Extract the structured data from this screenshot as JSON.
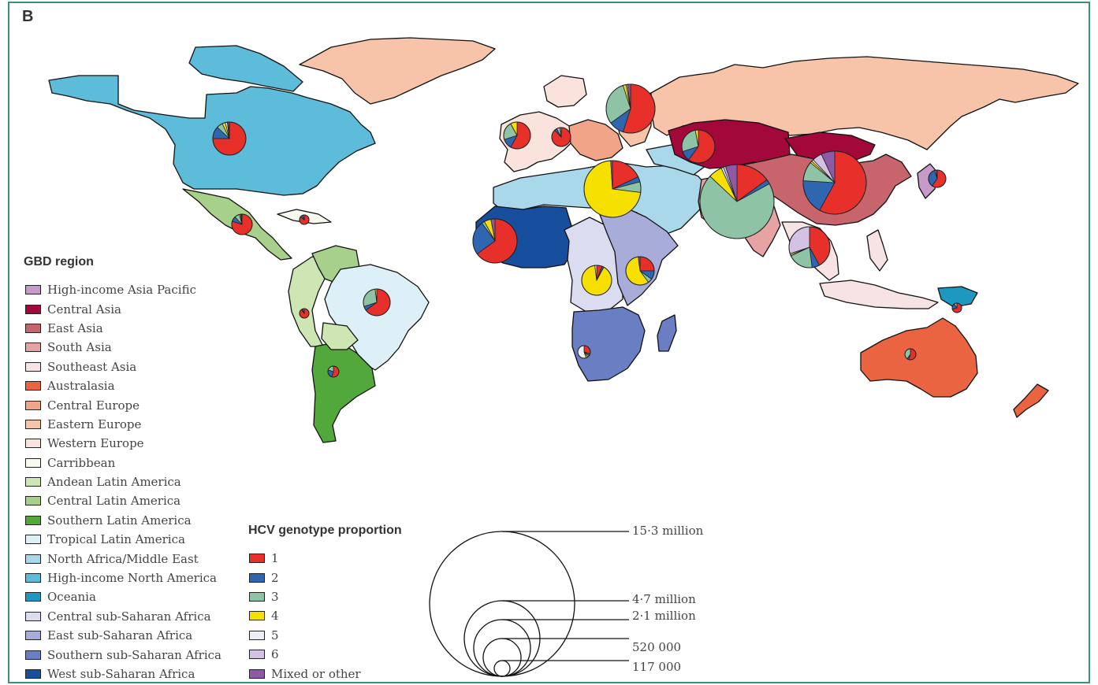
{
  "panel_label": "B",
  "gbd_legend": {
    "title": "GBD region",
    "items": [
      {
        "label": "High-income Asia Pacific",
        "color": "#c79ac9"
      },
      {
        "label": "Central Asia",
        "color": "#a3083b"
      },
      {
        "label": "East Asia",
        "color": "#c8646c"
      },
      {
        "label": "South Asia",
        "color": "#e5a3a3"
      },
      {
        "label": "Southeast Asia",
        "color": "#f7e3e3"
      },
      {
        "label": "Australasia",
        "color": "#ea6441"
      },
      {
        "label": "Central Europe",
        "color": "#f2a488"
      },
      {
        "label": "Eastern Europe",
        "color": "#f7c4aa"
      },
      {
        "label": "Western Europe",
        "color": "#fae3dc"
      },
      {
        "label": "Carribbean",
        "color": "#f7faee"
      },
      {
        "label": "Andean Latin America",
        "color": "#cde6b4"
      },
      {
        "label": "Central Latin America",
        "color": "#a7d08a"
      },
      {
        "label": "Southern Latin America",
        "color": "#52a83a"
      },
      {
        "label": "Tropical Latin America",
        "color": "#ddf0f7"
      },
      {
        "label": "North Africa/Middle East",
        "color": "#a9d8ea"
      },
      {
        "label": "High-income North America",
        "color": "#5cbcd9"
      },
      {
        "label": "Oceania",
        "color": "#1c98c1"
      },
      {
        "label": "Central sub-Saharan Africa",
        "color": "#dcdcf0"
      },
      {
        "label": "East sub-Saharan Africa",
        "color": "#a8acd8"
      },
      {
        "label": "Southern sub-Saharan Africa",
        "color": "#6a7ec4"
      },
      {
        "label": "West sub-Saharan Africa",
        "color": "#184e9e"
      }
    ]
  },
  "genotype_legend": {
    "title": "HCV genotype proportion",
    "items": [
      {
        "label": "1",
        "color": "#e8302a"
      },
      {
        "label": "2",
        "color": "#2f66b0"
      },
      {
        "label": "3",
        "color": "#8fc3a6"
      },
      {
        "label": "4",
        "color": "#f5e000"
      },
      {
        "label": "5",
        "color": "#eeeef5"
      },
      {
        "label": "6",
        "color": "#d3c2e3"
      },
      {
        "label": "Mixed or other",
        "color": "#8e5aa6"
      }
    ]
  },
  "size_scale": {
    "labels": [
      "15·3 million",
      "4·7 million",
      "2·1 million",
      "520 000",
      "117 000"
    ]
  },
  "pie_charts": [
    {
      "region": "High-income North America",
      "shares": [
        0.75,
        0.12,
        0.06,
        0.03,
        0.02,
        0.01,
        0.01
      ]
    },
    {
      "region": "Central Latin America",
      "shares": [
        0.8,
        0.08,
        0.08,
        0.02,
        0.01,
        0.005,
        0.005
      ]
    },
    {
      "region": "Carribbean",
      "shares": [
        0.85,
        0.1,
        0.05,
        0,
        0,
        0,
        0
      ]
    },
    {
      "region": "Andean Latin America",
      "shares": [
        0.9,
        0.05,
        0.05,
        0,
        0,
        0,
        0
      ]
    },
    {
      "region": "Tropical Latin America",
      "shares": [
        0.65,
        0.05,
        0.28,
        0.02,
        0,
        0,
        0
      ]
    },
    {
      "region": "Southern Latin America",
      "shares": [
        0.55,
        0.25,
        0.2,
        0,
        0,
        0,
        0
      ]
    },
    {
      "region": "Western Europe",
      "shares": [
        0.58,
        0.12,
        0.22,
        0.08,
        0,
        0,
        0
      ]
    },
    {
      "region": "Central Europe",
      "shares": [
        0.88,
        0.04,
        0.06,
        0.02,
        0,
        0,
        0
      ]
    },
    {
      "region": "Eastern Europe",
      "shares": [
        0.55,
        0.1,
        0.3,
        0.02,
        0,
        0.01,
        0.02
      ]
    },
    {
      "region": "Central Asia",
      "shares": [
        0.6,
        0.1,
        0.27,
        0.03,
        0,
        0,
        0
      ]
    },
    {
      "region": "North Africa/Middle East",
      "shares": [
        0.18,
        0.03,
        0.06,
        0.72,
        0,
        0,
        0.01
      ]
    },
    {
      "region": "South Asia",
      "shares": [
        0.15,
        0.02,
        0.7,
        0.06,
        0.01,
        0.01,
        0.05
      ]
    },
    {
      "region": "East Asia",
      "shares": [
        0.58,
        0.18,
        0.1,
        0.01,
        0.01,
        0.05,
        0.07
      ]
    },
    {
      "region": "Southeast Asia",
      "shares": [
        0.42,
        0.06,
        0.2,
        0.01,
        0.01,
        0.3,
        0
      ]
    },
    {
      "region": "High-income Asia Pacific",
      "shares": [
        0.6,
        0.35,
        0.03,
        0,
        0,
        0,
        0.02
      ]
    },
    {
      "region": "West sub-Saharan Africa",
      "shares": [
        0.65,
        0.25,
        0.02,
        0.05,
        0,
        0,
        0.03
      ]
    },
    {
      "region": "Central sub-Saharan Africa",
      "shares": [
        0.06,
        0.02,
        0,
        0.9,
        0.02,
        0,
        0
      ]
    },
    {
      "region": "East sub-Saharan Africa",
      "shares": [
        0.25,
        0.1,
        0.05,
        0.58,
        0,
        0,
        0.02
      ]
    },
    {
      "region": "Southern sub-Saharan Africa",
      "shares": [
        0.3,
        0.05,
        0.05,
        0.05,
        0.55,
        0,
        0
      ]
    },
    {
      "region": "Australasia",
      "shares": [
        0.55,
        0.05,
        0.4,
        0,
        0,
        0,
        0
      ]
    },
    {
      "region": "Oceania",
      "shares": [
        0.7,
        0.2,
        0.1,
        0,
        0,
        0,
        0
      ]
    }
  ]
}
